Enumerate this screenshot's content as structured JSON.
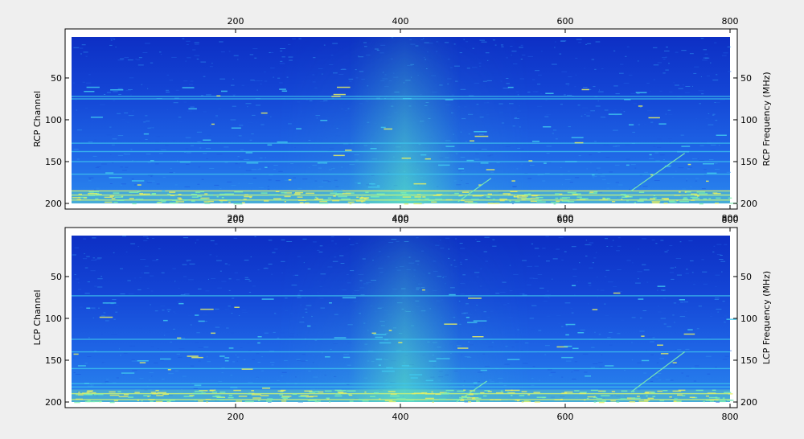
{
  "chart_data": [
    {
      "type": "heatmap",
      "ylabel": "RCP  Channel",
      "ylabel_right": "RCP  Frequency (MHz)",
      "x_ticks": [
        200,
        400,
        600,
        800
      ],
      "y_ticks": [
        50,
        100,
        150,
        200
      ],
      "x_range": [
        1,
        800
      ],
      "y_range": [
        1,
        200
      ],
      "colormap": [
        "#0a2bbf",
        "#1d5ae0",
        "#2f8fee",
        "#3fc8ee",
        "#7ff0b0",
        "#e8f060"
      ],
      "features": {
        "bright_rows": [
          72,
          75,
          128,
          138,
          150,
          165,
          185,
          190,
          196
        ],
        "dense_rows_from": 185,
        "vertical_glow_center": 405,
        "diagonal_streaks": [
          {
            "from": [
              470,
              198
            ],
            "to": [
              510,
              170
            ]
          },
          {
            "from": [
              680,
              185
            ],
            "to": [
              745,
              140
            ]
          }
        ]
      }
    },
    {
      "type": "heatmap",
      "ylabel": "LCP  Channel",
      "ylabel_right": "LCP  Frequency (MHz)",
      "x_ticks": [
        200,
        400,
        600,
        800
      ],
      "y_ticks": [
        50,
        100,
        150,
        200
      ],
      "x_range": [
        1,
        800
      ],
      "y_range": [
        1,
        200
      ],
      "colormap": [
        "#0a2bbf",
        "#1d5ae0",
        "#2f8fee",
        "#3fc8ee",
        "#7ff0b0",
        "#e8f060"
      ],
      "features": {
        "bright_rows": [
          73,
          125,
          140,
          160,
          178,
          182,
          190,
          197
        ],
        "dense_rows_from": 185,
        "vertical_glow_center": 405,
        "diagonal_streaks": [
          {
            "from": [
              468,
              200
            ],
            "to": [
              505,
              175
            ]
          },
          {
            "from": [
              680,
              188
            ],
            "to": [
              745,
              140
            ]
          }
        ]
      }
    }
  ]
}
